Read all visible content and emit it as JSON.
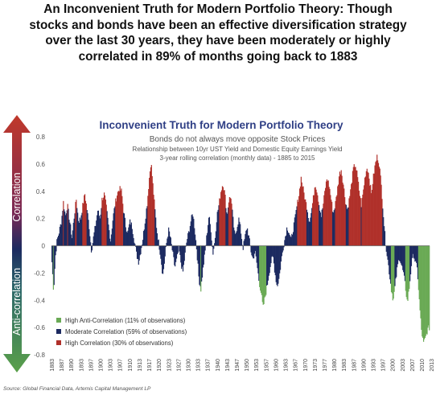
{
  "headline": {
    "lines": [
      "An Inconvenient Truth for Modern Portfolio Theory: Though",
      "stocks and bonds have been an effective diversification strategy",
      "over the last 30 years, they have been moderately or highly",
      "correlated in 89% of months going back to 1883"
    ]
  },
  "chart_data": {
    "type": "bar",
    "title": "Inconvenient Truth for Modern Portfolio Theory",
    "subtitle": "Bonds do not always move opposite Stock Prices",
    "description_lines": [
      "Relationship between 10yr UST Yield and Domestic Equity Earnings Yield",
      "3-year rolling correlation (monthly data) - 1885 to 2015"
    ],
    "y_axis_labels": {
      "upper": "Correlation",
      "lower": "Anti-correlation"
    },
    "ylim": [
      -0.8,
      0.8
    ],
    "y_ticks": [
      "0.8",
      "0.6",
      "0.4",
      "0.2",
      "0",
      "-0.2",
      "-0.4",
      "-0.6",
      "-0.8"
    ],
    "y_tick_values": [
      0.8,
      0.6,
      0.4,
      0.2,
      0,
      -0.2,
      -0.4,
      -0.6,
      -0.8
    ],
    "x_range": [
      1883,
      2015
    ],
    "x_ticks": [
      "1883",
      "1887",
      "1890",
      "1893",
      "1897",
      "1900",
      "1903",
      "1907",
      "1910",
      "1913",
      "1917",
      "1920",
      "1923",
      "1927",
      "1930",
      "1933",
      "1937",
      "1940",
      "1943",
      "1947",
      "1950",
      "1953",
      "1957",
      "1960",
      "1963",
      "1967",
      "1970",
      "1973",
      "1977",
      "1980",
      "1983",
      "1987",
      "1990",
      "1993",
      "1997",
      "2000",
      "2003",
      "2007",
      "2010",
      "2013"
    ],
    "x_tick_values": [
      1883,
      1886.4,
      1889.8,
      1893.2,
      1896.6,
      1900,
      1903.4,
      1906.8,
      1910.2,
      1913.6,
      1917,
      1920.4,
      1923.8,
      1927.2,
      1930.6,
      1934,
      1937.4,
      1940.8,
      1944.2,
      1947.6,
      1951,
      1954.4,
      1957.8,
      1961.2,
      1964.6,
      1968,
      1971.4,
      1974.8,
      1978.2,
      1981.6,
      1985,
      1988.4,
      1991.8,
      1995.2,
      1998.6,
      2002,
      2005.4,
      2008.8,
      2012.2,
      2015.6
    ],
    "categories": {
      "high_anti": {
        "label": "High Anti-Correlation (11% of observations)",
        "color": "#6aaa55"
      },
      "moderate": {
        "label": "Moderate Correlation (59% of observations)",
        "color": "#1c2a60"
      },
      "high": {
        "label": "High Correlation (30% of observations)",
        "color": "#b0302a"
      }
    },
    "thresholds": {
      "high": 0.3,
      "high_anti": -0.3
    },
    "series": [
      {
        "values": [
          [
            1883,
            -0.12
          ],
          [
            1883.6,
            -0.34
          ],
          [
            1884.2,
            -0.08
          ],
          [
            1884.8,
            0.04
          ],
          [
            1885.5,
            0.1
          ],
          [
            1886.3,
            0.18
          ],
          [
            1887,
            0.32
          ],
          [
            1887.7,
            0.22
          ],
          [
            1888.4,
            0.3
          ],
          [
            1889.2,
            0.18
          ],
          [
            1890,
            0.06
          ],
          [
            1890.8,
            0.22
          ],
          [
            1891.5,
            0.34
          ],
          [
            1892.3,
            0.18
          ],
          [
            1893,
            0.2
          ],
          [
            1893.8,
            0.3
          ],
          [
            1894.5,
            0.38
          ],
          [
            1895.3,
            0.26
          ],
          [
            1896,
            0.14
          ],
          [
            1896.8,
            -0.04
          ],
          [
            1897.5,
            0.06
          ],
          [
            1898.3,
            0.16
          ],
          [
            1899,
            0.26
          ],
          [
            1899.8,
            0.2
          ],
          [
            1900.5,
            0.34
          ],
          [
            1901.3,
            0.38
          ],
          [
            1902,
            0.28
          ],
          [
            1902.8,
            0.14
          ],
          [
            1903.5,
            0.04
          ],
          [
            1904.3,
            0.2
          ],
          [
            1905,
            0.3
          ],
          [
            1905.8,
            0.38
          ],
          [
            1906.5,
            0.42
          ],
          [
            1907.3,
            0.4
          ],
          [
            1908,
            0.26
          ],
          [
            1908.8,
            0.14
          ],
          [
            1909.5,
            0.1
          ],
          [
            1910.3,
            0.18
          ],
          [
            1911,
            0.14
          ],
          [
            1911.8,
            0.04
          ],
          [
            1912.5,
            -0.06
          ],
          [
            1913.3,
            -0.12
          ],
          [
            1914,
            -0.04
          ],
          [
            1914.8,
            0.06
          ],
          [
            1915.5,
            0.18
          ],
          [
            1916.3,
            0.32
          ],
          [
            1917,
            0.5
          ],
          [
            1917.6,
            0.62
          ],
          [
            1918.2,
            0.46
          ],
          [
            1918.9,
            0.28
          ],
          [
            1919.6,
            0.12
          ],
          [
            1920.3,
            0.02
          ],
          [
            1921,
            -0.08
          ],
          [
            1921.7,
            -0.22
          ],
          [
            1922.4,
            -0.1
          ],
          [
            1923.1,
            0.04
          ],
          [
            1923.8,
            0.12
          ],
          [
            1924.5,
            0.04
          ],
          [
            1925.2,
            -0.06
          ],
          [
            1925.9,
            -0.16
          ],
          [
            1926.6,
            -0.1
          ],
          [
            1927.3,
            -0.02
          ],
          [
            1928,
            -0.12
          ],
          [
            1928.7,
            -0.2
          ],
          [
            1929.4,
            -0.08
          ],
          [
            1930.1,
            0.04
          ],
          [
            1930.8,
            0.1
          ],
          [
            1931.5,
            0.18
          ],
          [
            1932.2,
            0.24
          ],
          [
            1932.9,
            0.12
          ],
          [
            1933.6,
            -0.04
          ],
          [
            1934.3,
            -0.24
          ],
          [
            1935,
            -0.32
          ],
          [
            1935.7,
            -0.18
          ],
          [
            1936.4,
            -0.06
          ],
          [
            1937.1,
            0.08
          ],
          [
            1937.8,
            0.22
          ],
          [
            1938.5,
            0.12
          ],
          [
            1939.2,
            -0.06
          ],
          [
            1939.9,
            0.04
          ],
          [
            1940.6,
            0.22
          ],
          [
            1941.3,
            0.3
          ],
          [
            1942,
            0.4
          ],
          [
            1942.7,
            0.46
          ],
          [
            1943.4,
            0.38
          ],
          [
            1944.1,
            0.22
          ],
          [
            1944.8,
            0.34
          ],
          [
            1945.5,
            0.36
          ],
          [
            1946.2,
            0.2
          ],
          [
            1946.9,
            0.06
          ],
          [
            1947.6,
            0.14
          ],
          [
            1948.3,
            0.2
          ],
          [
            1949,
            0.1
          ],
          [
            1949.7,
            -0.02
          ],
          [
            1950.4,
            0.06
          ],
          [
            1951.1,
            0.14
          ],
          [
            1951.8,
            0.06
          ],
          [
            1952.5,
            -0.04
          ],
          [
            1953.2,
            -0.1
          ],
          [
            1953.9,
            -0.04
          ],
          [
            1954.6,
            -0.14
          ],
          [
            1955.3,
            -0.26
          ],
          [
            1956,
            -0.34
          ],
          [
            1956.7,
            -0.46
          ],
          [
            1957.4,
            -0.38
          ],
          [
            1958.1,
            -0.3
          ],
          [
            1958.8,
            -0.2
          ],
          [
            1959.5,
            -0.12
          ],
          [
            1960.2,
            -0.08
          ],
          [
            1960.9,
            -0.2
          ],
          [
            1961.6,
            -0.3
          ],
          [
            1962.3,
            -0.24
          ],
          [
            1963,
            -0.12
          ],
          [
            1963.7,
            -0.02
          ],
          [
            1964.4,
            0.06
          ],
          [
            1965.1,
            0.14
          ],
          [
            1965.8,
            0.1
          ],
          [
            1966.5,
            0.04
          ],
          [
            1967.2,
            0.12
          ],
          [
            1967.9,
            0.2
          ],
          [
            1968.6,
            0.3
          ],
          [
            1969.3,
            0.38
          ],
          [
            1970,
            0.5
          ],
          [
            1970.7,
            0.42
          ],
          [
            1971.4,
            0.34
          ],
          [
            1972.1,
            0.28
          ],
          [
            1972.8,
            0.18
          ],
          [
            1973.5,
            0.24
          ],
          [
            1974.2,
            0.34
          ],
          [
            1974.9,
            0.46
          ],
          [
            1975.6,
            0.4
          ],
          [
            1976.3,
            0.3
          ],
          [
            1977,
            0.22
          ],
          [
            1977.7,
            0.3
          ],
          [
            1978.4,
            0.42
          ],
          [
            1979.1,
            0.5
          ],
          [
            1979.8,
            0.44
          ],
          [
            1980.5,
            0.34
          ],
          [
            1981.2,
            0.24
          ],
          [
            1981.9,
            0.3
          ],
          [
            1982.6,
            0.4
          ],
          [
            1983.3,
            0.52
          ],
          [
            1984,
            0.56
          ],
          [
            1984.7,
            0.46
          ],
          [
            1985.4,
            0.34
          ],
          [
            1986.1,
            0.26
          ],
          [
            1986.8,
            0.34
          ],
          [
            1987.5,
            0.44
          ],
          [
            1988.2,
            0.56
          ],
          [
            1988.9,
            0.6
          ],
          [
            1989.6,
            0.52
          ],
          [
            1990.3,
            0.4
          ],
          [
            1991,
            0.3
          ],
          [
            1991.7,
            0.4
          ],
          [
            1992.4,
            0.52
          ],
          [
            1993.1,
            0.58
          ],
          [
            1993.8,
            0.5
          ],
          [
            1994.5,
            0.38
          ],
          [
            1995.2,
            0.5
          ],
          [
            1995.9,
            0.6
          ],
          [
            1996.6,
            0.66
          ],
          [
            1997.3,
            0.6
          ],
          [
            1998,
            0.44
          ],
          [
            1998.7,
            0.24
          ],
          [
            1999.4,
            0.04
          ],
          [
            2000.1,
            -0.08
          ],
          [
            2000.8,
            -0.2
          ],
          [
            2001.5,
            -0.32
          ],
          [
            2002.2,
            -0.4
          ],
          [
            2002.9,
            -0.28
          ],
          [
            2003.6,
            -0.16
          ],
          [
            2004.3,
            -0.08
          ],
          [
            2005,
            -0.14
          ],
          [
            2005.7,
            -0.2
          ],
          [
            2006.4,
            -0.3
          ],
          [
            2007.1,
            -0.42
          ],
          [
            2007.8,
            -0.3
          ],
          [
            2008.5,
            -0.14
          ],
          [
            2009.2,
            -0.06
          ],
          [
            2009.9,
            -0.12
          ],
          [
            2010.6,
            -0.18
          ],
          [
            2011.3,
            -0.42
          ],
          [
            2012,
            -0.62
          ],
          [
            2012.7,
            -0.72
          ],
          [
            2013.4,
            -0.68
          ],
          [
            2014.1,
            -0.62
          ],
          [
            2014.8,
            -0.6
          ]
        ]
      }
    ],
    "legend_position": "bottom-left",
    "source": "Source: Global Financial Data, Artemis Capital Management LP"
  },
  "colors": {
    "title_blue": "#2f3f85",
    "axis_text": "#555555",
    "arrow_red": "#c0392b",
    "arrow_navy": "#1c2a60",
    "arrow_green": "#5aa04a"
  }
}
